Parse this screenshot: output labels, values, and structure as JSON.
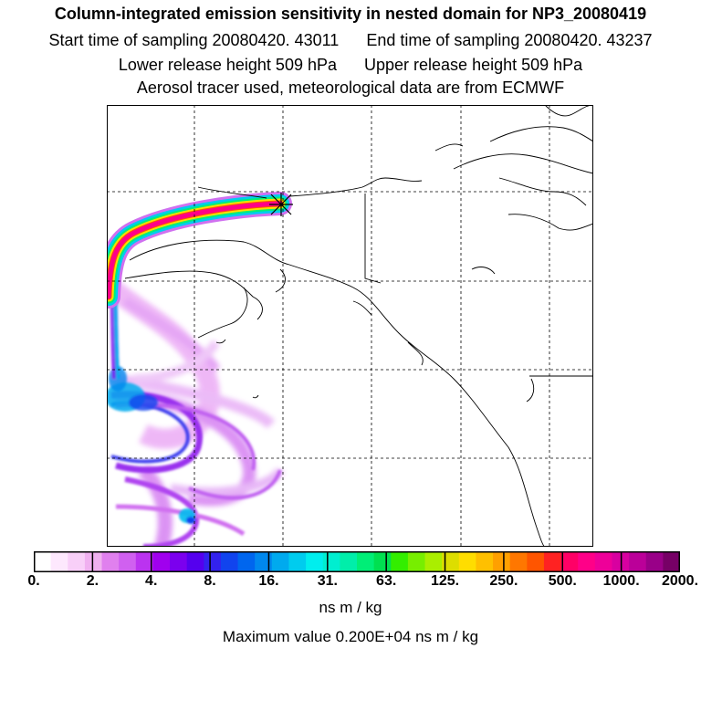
{
  "header": {
    "title": "Column-integrated emission sensitivity in nested domain for NP3_20080419",
    "start_label": "Start time of sampling 20080420. 43011",
    "end_label": "End time of sampling 20080420. 43237",
    "lower_label": "Lower release height  509 hPa",
    "upper_label": "Upper release height  509 hPa",
    "tracer_label": "Aerosol tracer used, meteorological data are from ECMWF"
  },
  "legend": {
    "colors": [
      "#ffffff",
      "#fde8fd",
      "#f8cff8",
      "#f0b0f0",
      "#e080ee",
      "#d060f0",
      "#bb33f0",
      "#a000ee",
      "#7b00ee",
      "#5500ee",
      "#3322ee",
      "#1144ee",
      "#0066ee",
      "#0088ee",
      "#00aaee",
      "#00ccee",
      "#00eeee",
      "#00eed0",
      "#00eeaa",
      "#00ee77",
      "#00e050",
      "#33ee00",
      "#77ee00",
      "#aaee00",
      "#dddd00",
      "#ffdd00",
      "#ffc000",
      "#ffa000",
      "#ff7700",
      "#ff5500",
      "#ff2222",
      "#ff0066",
      "#ff0088",
      "#ee0099",
      "#d800a0",
      "#bb0099",
      "#990088",
      "#770066"
    ],
    "ticks": [
      "0.",
      "2.",
      "4.",
      "8.",
      "16.",
      "31.",
      "63.",
      "125.",
      "250.",
      "500.",
      "1000.",
      "2000."
    ],
    "units": "ns m / kg",
    "max_value": "Maximum value  0.200E+04 ns m / kg"
  },
  "map": {
    "receptor_marker": "x-marker-icon",
    "plume_colors": [
      "#ff0088",
      "#ffdd00",
      "#00ee77",
      "#00ccee",
      "#1144ee",
      "#bb33f0",
      "#e080ee"
    ]
  }
}
